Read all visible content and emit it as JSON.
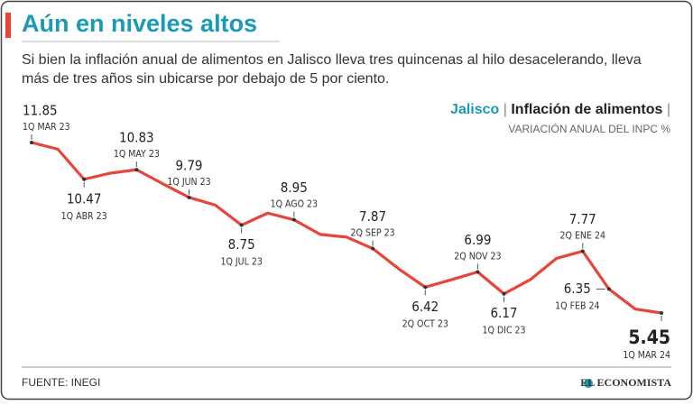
{
  "chart_data": {
    "type": "line",
    "title": "Aún en niveles altos",
    "subtitle": "Si bien la inflación anual de alimentos en Jalisco lleva tres quincenas al hilo desacelerando, lleva más de tres años sin ubicarse por debajo de 5 por ciento.",
    "indicator": "Inflación de alimentos",
    "unit_label": "VARIACIÓN ANUAL DEL INPC %",
    "source": "FUENTE: INEGI",
    "brand": "EL ECONOMISTA",
    "categories": [
      "1Q MAR 23",
      null,
      "1Q ABR 23",
      null,
      "1Q MAY 23",
      null,
      "1Q JUN 23",
      null,
      "1Q JUL 23",
      null,
      "1Q AGO 23",
      null,
      null,
      "2Q SEP 23",
      null,
      "2Q OCT 23",
      null,
      "2Q NOV 23",
      "1Q DIC 23",
      null,
      null,
      "2Q ENE 24",
      "1Q FEB 24",
      null,
      "1Q MAR 24"
    ],
    "series": [
      {
        "name": "Jalisco",
        "color": "#e8443a",
        "values": [
          11.85,
          11.6,
          10.47,
          10.7,
          10.83,
          10.3,
          9.79,
          9.5,
          8.75,
          9.2,
          8.95,
          8.4,
          8.3,
          7.87,
          7.1,
          6.42,
          6.7,
          6.99,
          6.17,
          6.7,
          7.5,
          7.77,
          6.35,
          5.6,
          5.45
        ]
      }
    ]
  }
}
